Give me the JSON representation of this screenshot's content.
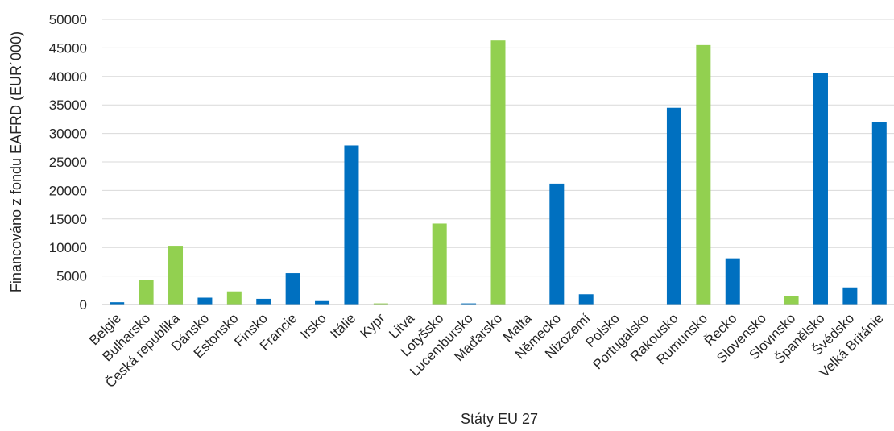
{
  "chart_data": {
    "type": "bar",
    "title": "",
    "xlabel": "Státy EU 27",
    "ylabel": "Financováno z fondu EAFRD (EUR´000)",
    "ylim": [
      0,
      50000
    ],
    "yticks": [
      "0",
      "5000",
      "10000",
      "15000",
      "20000",
      "25000",
      "30000",
      "35000",
      "40000",
      "45000",
      "50000"
    ],
    "grid": true,
    "legend": "none",
    "colors": {
      "blue": "#0070c0",
      "green": "#92d050"
    },
    "categories": [
      "Belgie",
      "Bulharsko",
      "Česká republika",
      "Dánsko",
      "Estonsko",
      "Finsko",
      "Francie",
      "Irsko",
      "Itálie",
      "Kypr",
      "Litva",
      "Lotyšsko",
      "Lucembursko",
      "Maďarsko",
      "Malta",
      "Německo",
      "Nizozemí",
      "Polsko",
      "Portugalsko",
      "Rakousko",
      "Rumunsko",
      "Řecko",
      "Slovensko",
      "Slovinsko",
      "Španělsko",
      "Švédsko",
      "Velká Británie"
    ],
    "values": [
      400,
      4300,
      10300,
      1200,
      2300,
      1000,
      5500,
      600,
      27900,
      200,
      0,
      14200,
      200,
      46300,
      0,
      21200,
      1800,
      0,
      0,
      34500,
      45500,
      8100,
      0,
      1500,
      40600,
      3000,
      32000
    ],
    "bar_colors": [
      "blue",
      "green",
      "green",
      "blue",
      "green",
      "blue",
      "blue",
      "blue",
      "blue",
      "green",
      "green",
      "green",
      "blue",
      "green",
      "green",
      "blue",
      "blue",
      "green",
      "blue",
      "blue",
      "green",
      "blue",
      "green",
      "green",
      "blue",
      "blue",
      "blue"
    ]
  }
}
